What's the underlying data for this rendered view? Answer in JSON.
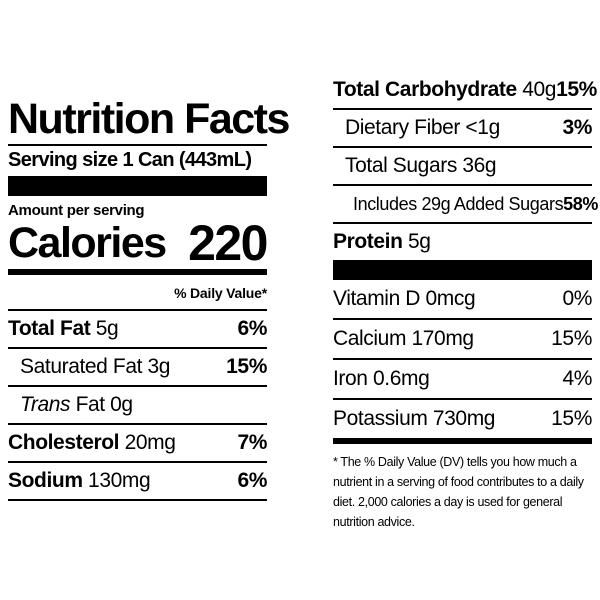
{
  "title": "Nutrition Facts",
  "serving_size": "Serving size 1 Can (443mL)",
  "amount_per_serving": "Amount per serving",
  "calories": {
    "label": "Calories",
    "value": "220"
  },
  "dv_header": "% Daily Value*",
  "left_rows": [
    {
      "name": "Total Fat",
      "amount": "5g",
      "pct": "6%"
    },
    {
      "name": "Saturated Fat 3g",
      "amount": "",
      "pct": "15%"
    },
    {
      "name": "Trans",
      "amount": "Fat 0g",
      "pct": ""
    },
    {
      "name": "Cholesterol",
      "amount": "20mg",
      "pct": "7%"
    },
    {
      "name": "Sodium",
      "amount": "130mg",
      "pct": "6%"
    }
  ],
  "right_rows": [
    {
      "name": "Total Carbohydrate",
      "amount": "40g",
      "pct": "15%"
    },
    {
      "name": "Dietary Fiber <1g",
      "amount": "",
      "pct": "3%"
    },
    {
      "name": "Total Sugars 36g",
      "amount": "",
      "pct": ""
    },
    {
      "name": "Includes 29g Added Sugars",
      "amount": "",
      "pct": "58%"
    },
    {
      "name": "Protein",
      "amount": "5g",
      "pct": ""
    }
  ],
  "vitamins": [
    {
      "name": "Vitamin D 0mcg",
      "pct": "0%"
    },
    {
      "name": "Calcium 170mg",
      "pct": "15%"
    },
    {
      "name": "Iron 0.6mg",
      "pct": "4%"
    },
    {
      "name": "Potassium 730mg",
      "pct": "15%"
    }
  ],
  "footnote": "* The % Daily Value (DV) tells you how much a nutrient in a serving of food contributes to a daily diet. 2,000 calories a day is used for general nutrition advice."
}
